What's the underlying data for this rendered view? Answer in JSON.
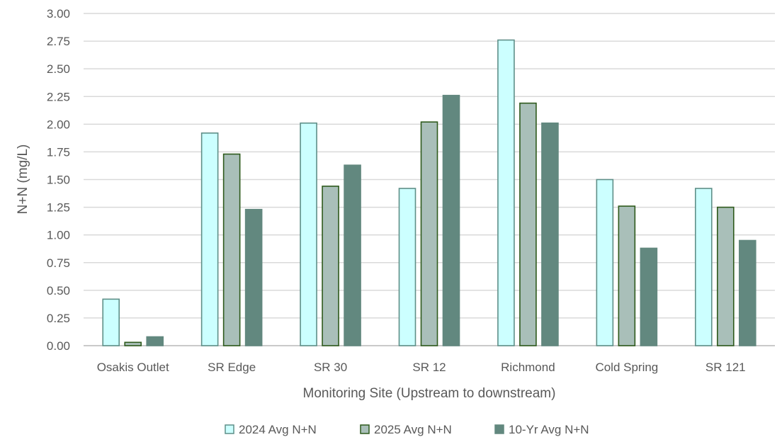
{
  "chart_data": {
    "type": "bar",
    "title": "",
    "xlabel": "Monitoring Site (Upstream to downstream)",
    "ylabel": "N+N (mg/L)",
    "ylim": [
      0,
      3.0
    ],
    "yticks": [
      "0.00",
      "0.25",
      "0.50",
      "0.75",
      "1.00",
      "1.25",
      "1.50",
      "1.75",
      "2.00",
      "2.25",
      "2.50",
      "2.75",
      "3.00"
    ],
    "grid": true,
    "legend_position": "bottom",
    "categories": [
      "Osakis Outlet",
      "SR Edge",
      "SR 30",
      "SR 12",
      "Richmond",
      "Cold Spring",
      "SR 121"
    ],
    "series": [
      {
        "name": "2024 Avg N+N",
        "values": [
          0.42,
          1.92,
          2.01,
          1.42,
          2.76,
          1.5,
          1.42
        ],
        "fill": "#ccffff",
        "stroke": "#5f8f88"
      },
      {
        "name": "2025 Avg N+N",
        "values": [
          0.03,
          1.73,
          1.44,
          2.02,
          2.19,
          1.26,
          1.25
        ],
        "fill": "#a9bfb9",
        "stroke": "#2e5a1c"
      },
      {
        "name": "10-Yr Avg N+N",
        "values": [
          0.08,
          1.23,
          1.63,
          2.26,
          2.01,
          0.88,
          0.95
        ],
        "fill": "#62887f",
        "stroke": "#62887f"
      }
    ]
  }
}
